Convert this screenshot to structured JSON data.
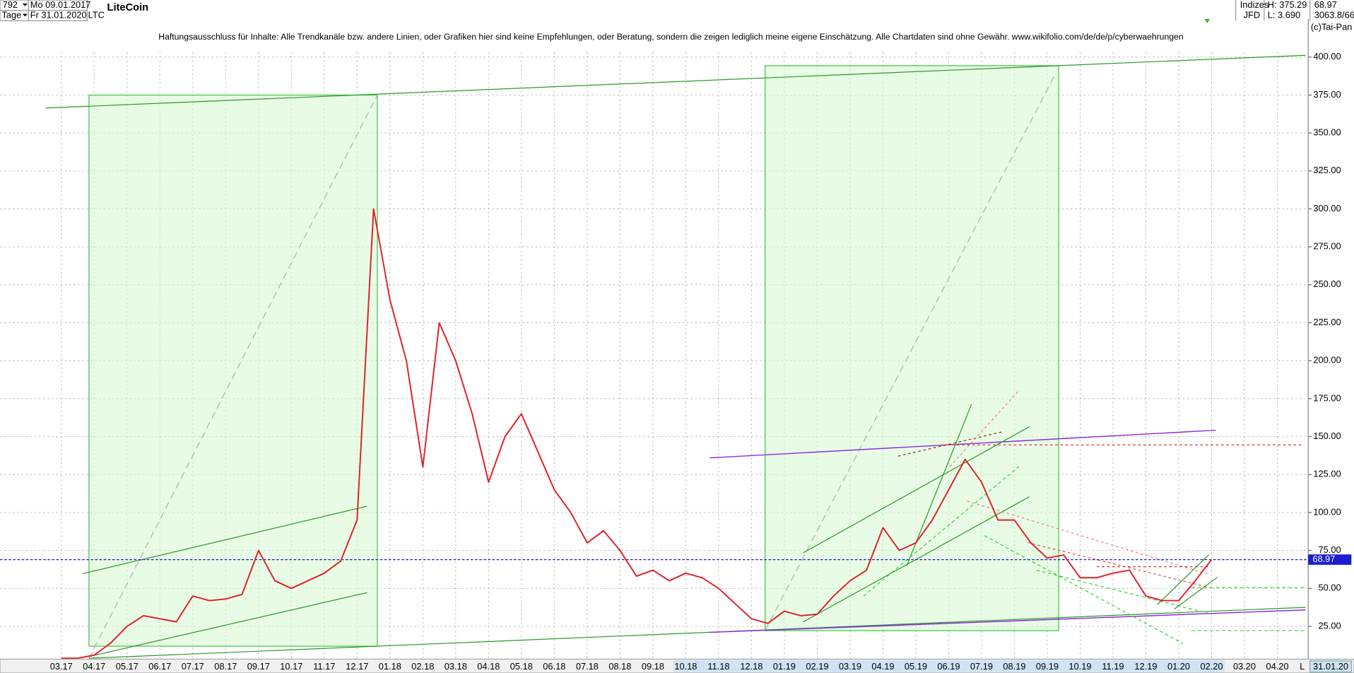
{
  "header": {
    "count": "792",
    "date_from": "Mo 09.01.2017",
    "period": "Tage",
    "date_to": "Fr 31.01.2020",
    "name": "LiteCoin",
    "symbol": "LTC",
    "group": "Indizes",
    "broker": "JFD",
    "high": "H: 375.29",
    "low": "L: 3.690",
    "volume": "3063.8/66",
    "copyright": "(c)Tai-Pan",
    "disclaimer": "Haftungsausschluss für Inhalte: Alle Trendkanäle bzw. andere Linien, oder Grafiken hier sind keine Empfehlungen, oder Beratung, sondern die zeigen lediglich meine eigene Einschätzung. Alle Chartdaten sind ohne Gewähr.  www.wikifolio.com/de/de/p/cyberwaehrungen"
  },
  "chart_data": {
    "type": "line",
    "categories": [
      "03.17",
      null,
      "04.17",
      null,
      "05.17",
      null,
      "06.17",
      null,
      "07.17",
      null,
      "08.17",
      null,
      "09.17",
      null,
      "10.17",
      null,
      "11.17",
      null,
      "12.17",
      null,
      "01.18",
      null,
      "02.18",
      null,
      "03.18",
      null,
      "04.18",
      null,
      "05.18",
      null,
      "06.18",
      null,
      "07.18",
      null,
      "08.18",
      null,
      "09.18",
      null,
      "10.18",
      null,
      "11.18",
      null,
      "12.18",
      null,
      "01.19",
      null,
      "02.19",
      null,
      "03.19",
      null,
      "04.19",
      null,
      "05.19",
      null,
      "06.19",
      null,
      "07.19",
      null,
      "08.19",
      null,
      "09.19",
      null,
      "10.19",
      null,
      "11.19",
      null,
      "12.19",
      null,
      "01.20",
      null,
      "02.20",
      null,
      "03.20",
      null,
      "04.20"
    ],
    "series": [
      {
        "color": "#e0202a",
        "values": [
          4,
          4,
          6,
          14,
          25,
          32,
          30,
          28,
          45,
          42,
          43,
          46,
          75,
          55,
          50,
          55,
          60,
          68,
          95,
          300,
          240,
          200,
          130,
          225,
          200,
          165,
          120,
          150,
          165,
          140,
          115,
          100,
          80,
          88,
          75,
          58,
          62,
          55,
          60,
          57,
          50,
          40,
          30,
          27,
          35,
          32,
          33,
          45,
          55,
          62,
          90,
          75,
          80,
          95,
          115,
          135,
          120,
          95,
          95,
          80,
          70,
          72,
          57,
          57,
          60,
          62,
          45,
          42,
          42,
          55,
          69,
          null,
          null,
          null,
          null
        ]
      }
    ],
    "ylim": [
      3.4,
      426.2
    ],
    "yticks": [
      {
        "value": 25,
        "label": "25.00"
      },
      {
        "value": 50,
        "label": "50.00"
      },
      {
        "value": 75,
        "label": "75.00"
      },
      {
        "value": 100,
        "label": "100.00"
      },
      {
        "value": 125,
        "label": "125.00"
      },
      {
        "value": 150,
        "label": "150.00"
      },
      {
        "value": 175,
        "label": "175.00"
      },
      {
        "value": 200,
        "label": "200.00"
      },
      {
        "value": 225,
        "label": "225.00"
      },
      {
        "value": 250,
        "label": "250.00"
      },
      {
        "value": 275,
        "label": "275.00"
      },
      {
        "value": 300,
        "label": "300.00"
      },
      {
        "value": 325,
        "label": "325.00"
      },
      {
        "value": 350,
        "label": "350.00"
      },
      {
        "value": 375,
        "label": "375.00"
      },
      {
        "value": 400,
        "label": "400.00"
      }
    ],
    "grid": true,
    "last_price": 68.97,
    "last_price_color": "#1c1cd0",
    "current_date": "31.01.20",
    "scale_mode": "L"
  }
}
